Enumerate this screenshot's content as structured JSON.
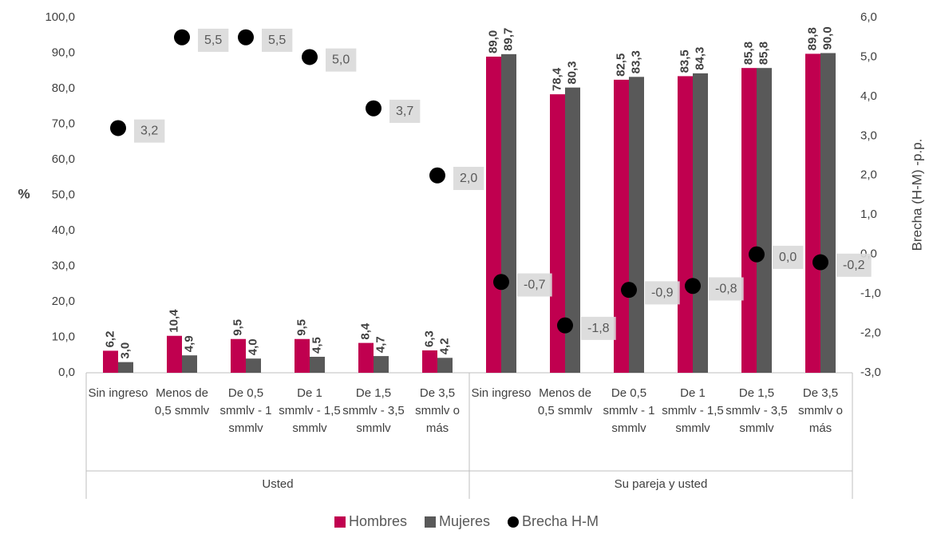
{
  "chart_data": {
    "type": "bar",
    "y_label": "%",
    "y2_label": "Brecha (H-M) -p.p.",
    "categories": [
      "Sin ingreso",
      "Menos de 0,5 smmlv",
      "De 0,5 smmlv - 1 smmlv",
      "De 1 smmlv - 1,5 smmlv",
      "De 1,5 smmlv - 3,5 smmlv",
      "De 3,5 smmlv o más",
      "Sin ingreso",
      "Menos de 0,5 smmlv",
      "De 0,5 smmlv - 1 smmlv",
      "De 1 smmlv - 1,5 smmlv",
      "De 1,5 smmlv - 3,5 smmlv",
      "De 3,5 smmlv o más"
    ],
    "groups": [
      "Usted",
      "Su pareja y usted"
    ],
    "series": [
      {
        "name": "Hombres",
        "type": "bar",
        "color": "#c0004f",
        "values": [
          6.2,
          10.4,
          9.5,
          9.5,
          8.4,
          6.3,
          89.0,
          78.4,
          82.5,
          83.5,
          85.8,
          89.8
        ],
        "value_labels": [
          "6,2",
          "10,4",
          "9,5",
          "9,5",
          "8,4",
          "6,3",
          "89,0",
          "78,4",
          "82,5",
          "83,5",
          "85,8",
          "89,8"
        ]
      },
      {
        "name": "Mujeres",
        "type": "bar",
        "color": "#595959",
        "values": [
          3.0,
          4.9,
          4.0,
          4.5,
          4.7,
          4.2,
          89.7,
          80.3,
          83.3,
          84.3,
          85.8,
          90.0
        ],
        "value_labels": [
          "3,0",
          "4,9",
          "4,0",
          "4,5",
          "4,7",
          "4,2",
          "89,7",
          "80,3",
          "83,3",
          "84,3",
          "85,8",
          "90,0"
        ]
      },
      {
        "name": "Brecha H-M",
        "type": "scatter",
        "axis": "y2",
        "color": "#000000",
        "values": [
          3.2,
          5.5,
          5.5,
          5.0,
          3.7,
          2.0,
          -0.7,
          -1.8,
          -0.9,
          -0.8,
          0.0,
          -0.2
        ],
        "value_labels": [
          "3,2",
          "5,5",
          "5,5",
          "5,0",
          "3,7",
          "2,0",
          "-0,7",
          "-1,8",
          "-0,9",
          "-0,8",
          "0,0",
          "-0,2"
        ]
      }
    ],
    "ylim": [
      0,
      100
    ],
    "yticks": [
      {
        "value": 0,
        "label": "0,0"
      },
      {
        "value": 10,
        "label": "10,0"
      },
      {
        "value": 20,
        "label": "20,0"
      },
      {
        "value": 30,
        "label": "30,0"
      },
      {
        "value": 40,
        "label": "40,0"
      },
      {
        "value": 50,
        "label": "50,0"
      },
      {
        "value": 60,
        "label": "60,0"
      },
      {
        "value": 70,
        "label": "70,0"
      },
      {
        "value": 80,
        "label": "80,0"
      },
      {
        "value": 90,
        "label": "90,0"
      },
      {
        "value": 100,
        "label": "100,0"
      }
    ],
    "y2lim": [
      -3,
      6
    ],
    "y2ticks": [
      {
        "value": -3,
        "label": "-3,0"
      },
      {
        "value": -2,
        "label": "-2,0"
      },
      {
        "value": -1,
        "label": "-1,0"
      },
      {
        "value": 0,
        "label": "0,0"
      },
      {
        "value": 1,
        "label": "1,0"
      },
      {
        "value": 2,
        "label": "2,0"
      },
      {
        "value": 3,
        "label": "3,0"
      },
      {
        "value": 4,
        "label": "4,0"
      },
      {
        "value": 5,
        "label": "5,0"
      },
      {
        "value": 6,
        "label": "6,0"
      }
    ],
    "grid": false,
    "legend": "bottom"
  }
}
